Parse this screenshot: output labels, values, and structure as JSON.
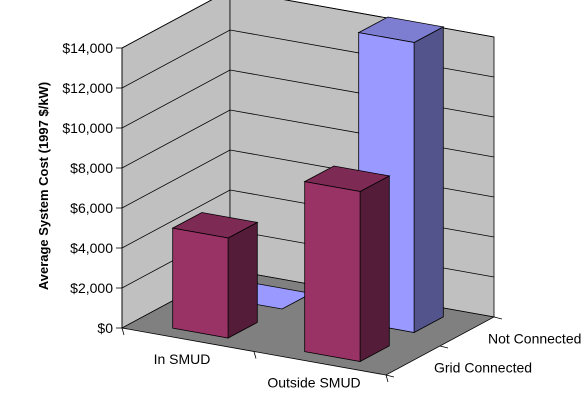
{
  "chart_data": {
    "type": "bar",
    "projection": "3d",
    "ylabel": "Average System Cost (1997 $/kW)",
    "xlabel": "",
    "title": "",
    "categories": [
      "In SMUD",
      "Outside SMUD"
    ],
    "depth_categories": [
      "Grid Connected",
      "Not Connected"
    ],
    "ylim": [
      0,
      14000
    ],
    "yticks": [
      0,
      2000,
      4000,
      6000,
      8000,
      10000,
      12000,
      14000
    ],
    "ytick_labels": [
      "$0",
      "$2,000",
      "$4,000",
      "$6,000",
      "$8,000",
      "$10,000",
      "$12,000",
      "$14,000"
    ],
    "series": [
      {
        "depth": "Grid Connected",
        "values": [
          5000,
          8500
        ],
        "color": "#993366"
      },
      {
        "depth": "Not Connected",
        "values": [
          0,
          14500
        ],
        "color": "#9999ff"
      }
    ],
    "grid": true,
    "legend": "none"
  }
}
